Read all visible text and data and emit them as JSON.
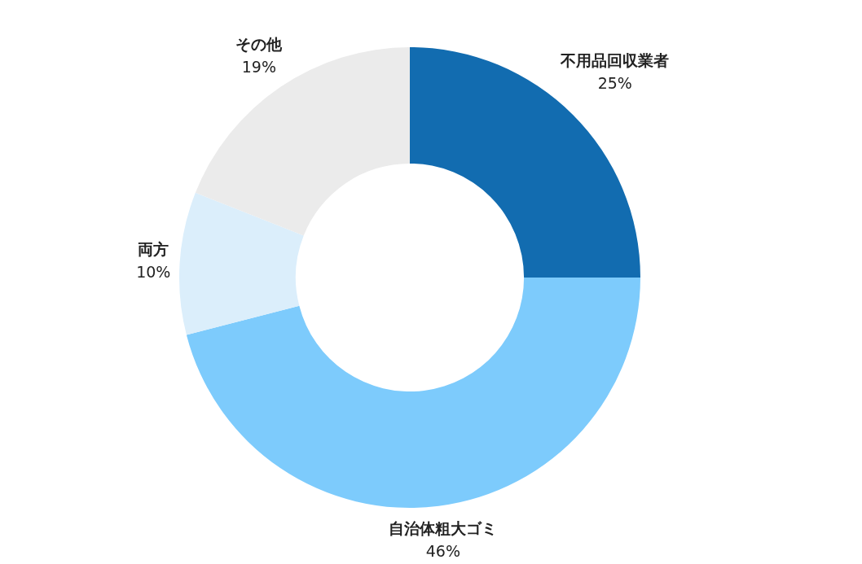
{
  "chart_data": {
    "type": "donut",
    "categories": [
      "不用品回収業者",
      "自治体粗大ゴミ",
      "両方",
      "その他"
    ],
    "values": [
      25,
      46,
      10,
      19
    ],
    "colors": [
      "#126cb0",
      "#7dcbfc",
      "#dbeefb",
      "#ebebeb"
    ],
    "value_labels": [
      "25%",
      "46%",
      "10%",
      "19%"
    ]
  }
}
